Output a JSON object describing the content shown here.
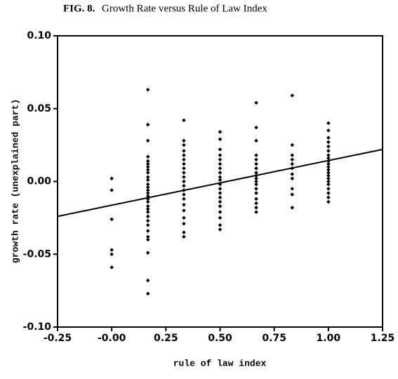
{
  "chart_data": {
    "type": "scatter",
    "label": "FIG. 8.",
    "title": "Growth Rate versus Rule of Law Index",
    "x_label": "rule of law index",
    "y_label": "growth rate (unexplained part)",
    "xlim": [
      -0.25,
      1.25
    ],
    "ylim": [
      -0.1,
      0.1
    ],
    "xticks": [
      {
        "value": -0.25,
        "label": "-0.25"
      },
      {
        "value": 0,
        "label": "-0.00"
      },
      {
        "value": 0.25,
        "label": "0.25"
      },
      {
        "value": 0.5,
        "label": "0.50"
      },
      {
        "value": 0.75,
        "label": "0.75"
      },
      {
        "value": 1,
        "label": "1.00"
      },
      {
        "value": 1.25,
        "label": "1.25"
      }
    ],
    "yticks": [
      {
        "value": 0.1,
        "label": "0.10"
      },
      {
        "value": 0.05,
        "label": "0.05"
      },
      {
        "value": 0,
        "label": "0.00"
      },
      {
        "value": -0.05,
        "label": "-0.05"
      },
      {
        "value": -0.1,
        "label": "-0.10"
      }
    ],
    "series": [
      {
        "type": "scatter",
        "color": "#000000",
        "x": [
          0,
          0,
          0,
          0,
          0,
          0,
          0.167,
          0.167,
          0.167,
          0.167,
          0.167,
          0.167,
          0.167,
          0.167,
          0.167,
          0.167,
          0.167,
          0.167,
          0.167,
          0.167,
          0.167,
          0.167,
          0.167,
          0.167,
          0.167,
          0.167,
          0.167,
          0.167,
          0.167,
          0.167,
          0.167,
          0.167,
          0.167,
          0.167,
          0.167,
          0.167,
          0.333,
          0.333,
          0.333,
          0.333,
          0.333,
          0.333,
          0.333,
          0.333,
          0.333,
          0.333,
          0.333,
          0.333,
          0.333,
          0.333,
          0.333,
          0.333,
          0.333,
          0.333,
          0.333,
          0.333,
          0.333,
          0.5,
          0.5,
          0.5,
          0.5,
          0.5,
          0.5,
          0.5,
          0.5,
          0.5,
          0.5,
          0.5,
          0.5,
          0.5,
          0.5,
          0.5,
          0.5,
          0.5,
          0.5,
          0.5,
          0.5,
          0.667,
          0.667,
          0.667,
          0.667,
          0.667,
          0.667,
          0.667,
          0.667,
          0.667,
          0.667,
          0.667,
          0.667,
          0.667,
          0.667,
          0.667,
          0.667,
          0.667,
          0.667,
          0.833,
          0.833,
          0.833,
          0.833,
          0.833,
          0.833,
          0.833,
          0.833,
          0.833,
          0.833,
          0.833,
          1,
          1,
          1,
          1,
          1,
          1,
          1,
          1,
          1,
          1,
          1,
          1,
          1,
          1,
          1,
          1,
          1,
          1,
          1,
          1,
          1
        ],
        "values": [
          0.002,
          -0.006,
          -0.026,
          -0.047,
          -0.05,
          -0.059,
          0.063,
          0.039,
          0.028,
          0.017,
          0.014,
          0.012,
          0.01,
          0.008,
          0.006,
          0.003,
          0.001,
          -0.002,
          -0.004,
          -0.006,
          -0.008,
          -0.01,
          -0.012,
          -0.014,
          -0.017,
          -0.019,
          -0.021,
          -0.024,
          -0.027,
          -0.03,
          -0.034,
          -0.038,
          -0.04,
          -0.049,
          -0.068,
          -0.077,
          0.042,
          0.028,
          0.025,
          0.021,
          0.018,
          0.015,
          0.012,
          0.009,
          0.006,
          0.003,
          0,
          -0.003,
          -0.006,
          -0.009,
          -0.012,
          -0.016,
          -0.02,
          -0.025,
          -0.029,
          -0.035,
          -0.038,
          0.034,
          0.029,
          0.022,
          0.018,
          0.015,
          0.012,
          0.009,
          0.006,
          0.003,
          0.001,
          -0.002,
          -0.005,
          -0.008,
          -0.011,
          -0.014,
          -0.017,
          -0.021,
          -0.025,
          -0.03,
          -0.033,
          0.054,
          0.037,
          0.028,
          0.018,
          0.015,
          0.012,
          0.009,
          0.006,
          0.004,
          0.002,
          0,
          -0.002,
          -0.005,
          -0.008,
          -0.012,
          -0.015,
          -0.018,
          -0.021,
          0.059,
          0.025,
          0.018,
          0.015,
          0.012,
          0.009,
          0.005,
          0.002,
          -0.005,
          -0.009,
          -0.018,
          0.04,
          0.035,
          0.03,
          0.027,
          0.024,
          0.021,
          0.018,
          0.016,
          0.014,
          0.012,
          0.01,
          0.008,
          0.006,
          0.004,
          0.002,
          0,
          -0.002,
          -0.005,
          -0.008,
          -0.011,
          -0.014
        ]
      },
      {
        "type": "line",
        "color": "#000000",
        "x": [
          -0.25,
          1.25
        ],
        "values": [
          -0.024,
          0.022
        ]
      }
    ]
  }
}
